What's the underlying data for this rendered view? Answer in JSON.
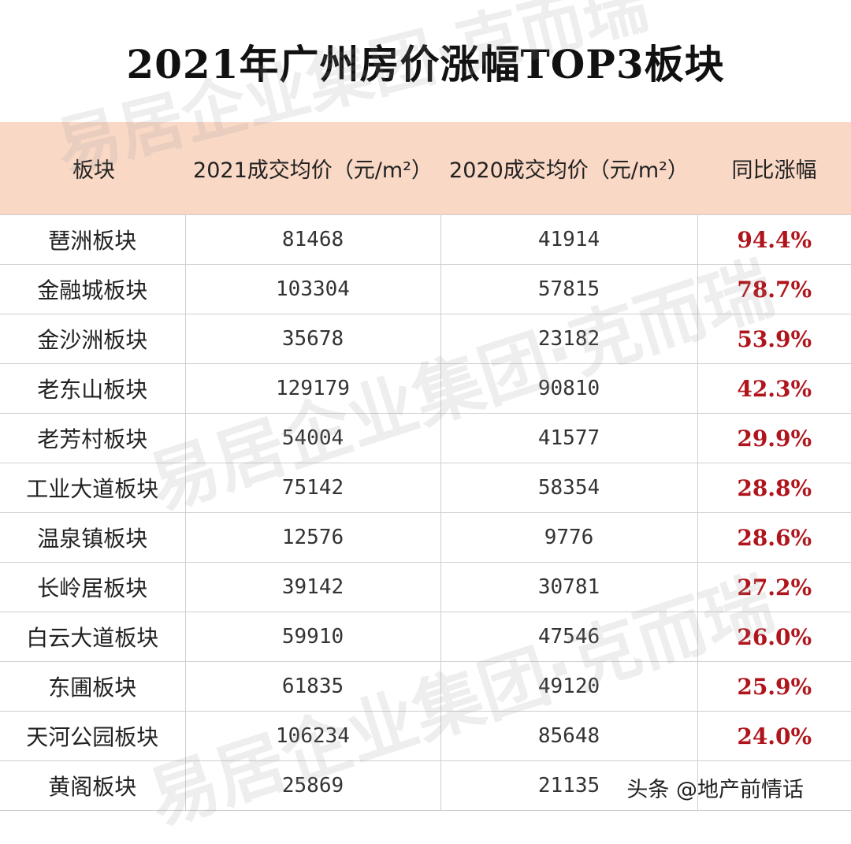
{
  "title": "2021年广州房价涨幅TOP3板块",
  "table": {
    "headers": [
      "板块",
      "2021成交均价（元/m²）",
      "2020成交均价（元/m²）",
      "同比涨幅"
    ],
    "rows": [
      [
        "琶洲板块",
        "81468",
        "41914",
        "94.4%"
      ],
      [
        "金融城板块",
        "103304",
        "57815",
        "78.7%"
      ],
      [
        "金沙洲板块",
        "35678",
        "23182",
        "53.9%"
      ],
      [
        "老东山板块",
        "129179",
        "90810",
        "42.3%"
      ],
      [
        "老芳村板块",
        "54004",
        "41577",
        "29.9%"
      ],
      [
        "工业大道板块",
        "75142",
        "58354",
        "28.8%"
      ],
      [
        "温泉镇板块",
        "12576",
        "9776",
        "28.6%"
      ],
      [
        "长岭居板块",
        "39142",
        "30781",
        "27.2%"
      ],
      [
        "白云大道板块",
        "59910",
        "47546",
        "26.0%"
      ],
      [
        "东圃板块",
        "61835",
        "49120",
        "25.9%"
      ],
      [
        "天河公园板块",
        "106234",
        "85648",
        "24.0%"
      ],
      [
        "黄阁板块",
        "25869",
        "21135",
        ""
      ]
    ]
  },
  "watermark": "易居企业集团·克而瑞",
  "credit": "头条 @地产前情话"
}
